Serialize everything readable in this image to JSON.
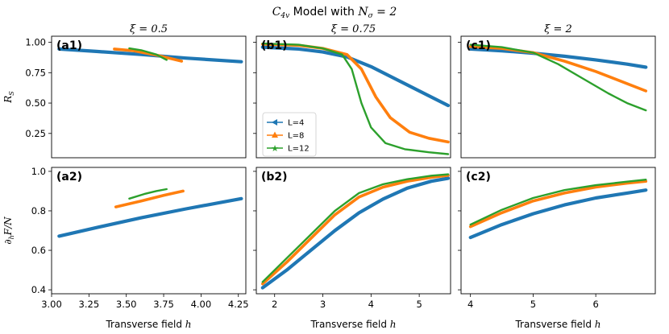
{
  "title": "C₄ᵥ Model with Nσ = 2",
  "title_parts": {
    "sym": "C",
    "sub": "4v",
    "mid": " Model with ",
    "nsym": "N",
    "nsub": "σ",
    "eq": " = 2"
  },
  "column_titles": [
    "ξ = 0.5",
    "ξ = 0.75",
    "ξ = 2"
  ],
  "row_ylabels": [
    "R_S",
    "∂_h F / N"
  ],
  "ylabel_parts": [
    {
      "main": "R",
      "sub": "S"
    },
    {
      "main": "∂",
      "sub": "h",
      "rest": "F/N"
    }
  ],
  "xlabel": "Transverse field h",
  "xlabel_parts": {
    "text": "Transverse field ",
    "var": "h"
  },
  "legend": [
    "L=4",
    "L=8",
    "L=12"
  ],
  "colors": {
    "L4": "#1f77b4",
    "L8": "#ff7f0e",
    "L12": "#2ca02c"
  },
  "chart_data": [
    {
      "type": "line",
      "label": "(a1)",
      "xlim": [
        3.0,
        4.3
      ],
      "ylim": [
        0.05,
        1.05
      ],
      "yticks": [
        0.25,
        0.5,
        0.75,
        1.0
      ],
      "ytick_labels": [
        "0.25",
        "0.50",
        "0.75",
        "1.00"
      ],
      "series": [
        {
          "name": "L=4",
          "x": [
            3.05,
            3.3,
            3.6,
            3.9,
            4.27
          ],
          "y": [
            0.945,
            0.925,
            0.9,
            0.87,
            0.84
          ]
        },
        {
          "name": "L=8",
          "x": [
            3.42,
            3.55,
            3.7,
            3.87
          ],
          "y": [
            0.945,
            0.93,
            0.895,
            0.845
          ]
        },
        {
          "name": "L=12",
          "x": [
            3.52,
            3.6,
            3.7,
            3.77
          ],
          "y": [
            0.95,
            0.935,
            0.9,
            0.855
          ]
        }
      ]
    },
    {
      "type": "line",
      "label": "(b1)",
      "xlim": [
        1.62,
        5.65
      ],
      "ylim": [
        0.05,
        1.05
      ],
      "yticks": [
        0.25,
        0.5,
        0.75,
        1.0
      ],
      "ytick_labels": [
        "",
        "",
        "",
        ""
      ],
      "series": [
        {
          "name": "L=4",
          "x": [
            1.75,
            2.5,
            3.0,
            3.5,
            4.0,
            4.5,
            5.0,
            5.6
          ],
          "y": [
            0.96,
            0.945,
            0.92,
            0.88,
            0.8,
            0.7,
            0.6,
            0.48
          ]
        },
        {
          "name": "L=8",
          "x": [
            1.75,
            2.5,
            3.0,
            3.5,
            3.8,
            4.1,
            4.4,
            4.8,
            5.2,
            5.6
          ],
          "y": [
            0.985,
            0.975,
            0.95,
            0.9,
            0.78,
            0.55,
            0.38,
            0.26,
            0.21,
            0.18
          ]
        },
        {
          "name": "L=12",
          "x": [
            1.75,
            2.5,
            3.0,
            3.4,
            3.6,
            3.8,
            4.0,
            4.3,
            4.7,
            5.2,
            5.6
          ],
          "y": [
            0.99,
            0.98,
            0.95,
            0.9,
            0.78,
            0.5,
            0.3,
            0.17,
            0.12,
            0.095,
            0.08
          ]
        }
      ]
    },
    {
      "type": "line",
      "label": "(c1)",
      "xlim": [
        3.85,
        6.95
      ],
      "ylim": [
        0.05,
        1.05
      ],
      "yticks": [
        0.25,
        0.5,
        0.75,
        1.0
      ],
      "ytick_labels": [
        "",
        "",
        "",
        ""
      ],
      "series": [
        {
          "name": "L=4",
          "x": [
            4.0,
            4.5,
            5.0,
            5.5,
            6.0,
            6.5,
            6.8
          ],
          "y": [
            0.945,
            0.93,
            0.91,
            0.885,
            0.855,
            0.82,
            0.795
          ]
        },
        {
          "name": "L=8",
          "x": [
            4.0,
            4.5,
            5.0,
            5.5,
            6.0,
            6.5,
            6.8
          ],
          "y": [
            0.965,
            0.95,
            0.915,
            0.845,
            0.76,
            0.66,
            0.6
          ]
        },
        {
          "name": "L=12",
          "x": [
            4.0,
            4.5,
            5.0,
            5.4,
            5.8,
            6.2,
            6.5,
            6.8
          ],
          "y": [
            0.98,
            0.96,
            0.915,
            0.82,
            0.7,
            0.58,
            0.5,
            0.44
          ]
        }
      ]
    },
    {
      "type": "line",
      "label": "(a2)",
      "xlim": [
        3.0,
        4.3
      ],
      "ylim": [
        0.38,
        1.02
      ],
      "yticks": [
        0.4,
        0.6,
        0.8,
        1.0
      ],
      "ytick_labels": [
        "0.4",
        "0.6",
        "0.8",
        "1.0"
      ],
      "xticks": [
        3.0,
        3.25,
        3.5,
        3.75,
        4.0,
        4.25
      ],
      "xtick_labels": [
        "3.00",
        "3.25",
        "3.50",
        "3.75",
        "4.00",
        "4.25"
      ],
      "series": [
        {
          "name": "L=4",
          "x": [
            3.05,
            3.3,
            3.6,
            3.9,
            4.27
          ],
          "y": [
            0.672,
            0.715,
            0.765,
            0.81,
            0.862
          ]
        },
        {
          "name": "L=8",
          "x": [
            3.43,
            3.6,
            3.75,
            3.88
          ],
          "y": [
            0.82,
            0.85,
            0.878,
            0.9
          ]
        },
        {
          "name": "L=12",
          "x": [
            3.52,
            3.62,
            3.7,
            3.77
          ],
          "y": [
            0.862,
            0.885,
            0.9,
            0.91
          ]
        }
      ]
    },
    {
      "type": "line",
      "label": "(b2)",
      "xlim": [
        1.62,
        5.65
      ],
      "ylim": [
        0.38,
        1.02
      ],
      "yticks": [
        0.4,
        0.6,
        0.8,
        1.0
      ],
      "ytick_labels": [
        "",
        "",
        "",
        ""
      ],
      "xticks": [
        2,
        3,
        4,
        5
      ],
      "xtick_labels": [
        "2",
        "3",
        "4",
        "5"
      ],
      "series": [
        {
          "name": "L=4",
          "x": [
            1.75,
            2.25,
            2.75,
            3.25,
            3.75,
            4.25,
            4.75,
            5.25,
            5.6
          ],
          "y": [
            0.41,
            0.5,
            0.6,
            0.7,
            0.79,
            0.86,
            0.915,
            0.95,
            0.965
          ]
        },
        {
          "name": "L=8",
          "x": [
            1.75,
            2.25,
            2.75,
            3.25,
            3.75,
            4.25,
            4.75,
            5.25,
            5.6
          ],
          "y": [
            0.43,
            0.54,
            0.66,
            0.78,
            0.87,
            0.92,
            0.95,
            0.97,
            0.98
          ]
        },
        {
          "name": "L=12",
          "x": [
            1.75,
            2.25,
            2.75,
            3.25,
            3.75,
            4.25,
            4.75,
            5.25,
            5.6
          ],
          "y": [
            0.44,
            0.56,
            0.68,
            0.8,
            0.89,
            0.935,
            0.96,
            0.978,
            0.985
          ]
        }
      ]
    },
    {
      "type": "line",
      "label": "(c2)",
      "xlim": [
        3.85,
        6.95
      ],
      "ylim": [
        0.38,
        1.02
      ],
      "yticks": [
        0.4,
        0.6,
        0.8,
        1.0
      ],
      "ytick_labels": [
        "",
        "",
        "",
        ""
      ],
      "xticks": [
        4,
        5,
        6
      ],
      "xtick_labels": [
        "4",
        "5",
        "6"
      ],
      "series": [
        {
          "name": "L=4",
          "x": [
            4.0,
            4.5,
            5.0,
            5.5,
            6.0,
            6.5,
            6.8
          ],
          "y": [
            0.665,
            0.73,
            0.785,
            0.83,
            0.865,
            0.89,
            0.905
          ]
        },
        {
          "name": "L=8",
          "x": [
            4.0,
            4.5,
            5.0,
            5.5,
            6.0,
            6.5,
            6.8
          ],
          "y": [
            0.72,
            0.79,
            0.85,
            0.89,
            0.92,
            0.94,
            0.95
          ]
        },
        {
          "name": "L=12",
          "x": [
            4.0,
            4.5,
            5.0,
            5.5,
            6.0,
            6.5,
            6.8
          ],
          "y": [
            0.73,
            0.805,
            0.865,
            0.905,
            0.93,
            0.948,
            0.958
          ]
        }
      ]
    }
  ]
}
